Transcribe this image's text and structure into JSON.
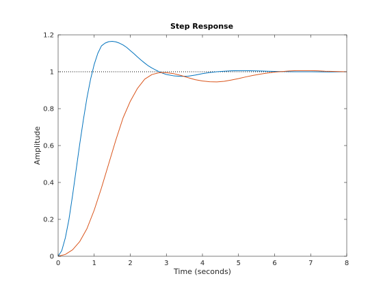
{
  "chart_data": {
    "type": "line",
    "title": "Step Response",
    "xlabel": "Time (seconds)",
    "ylabel": "Amplitude",
    "xlim": [
      0,
      8
    ],
    "ylim": [
      0,
      1.2
    ],
    "xticks": [
      0,
      1,
      2,
      3,
      4,
      5,
      6,
      7,
      8
    ],
    "yticks": [
      0,
      0.2,
      0.4,
      0.6,
      0.8,
      1,
      1.2
    ],
    "grid": false,
    "reference_line": {
      "y": 1,
      "style": "dotted",
      "color": "#000000"
    },
    "series": [
      {
        "color": "#0072BD",
        "x": [
          0,
          0.1,
          0.2,
          0.3,
          0.4,
          0.5,
          0.6,
          0.7,
          0.8,
          0.9,
          1.0,
          1.1,
          1.2,
          1.3,
          1.4,
          1.5,
          1.6,
          1.7,
          1.8,
          1.9,
          2.0,
          2.1,
          2.2,
          2.3,
          2.4,
          2.5,
          2.6,
          2.7,
          2.8,
          2.9,
          3.0,
          3.2,
          3.4,
          3.6,
          3.8,
          4.0,
          4.2,
          4.4,
          4.6,
          4.8,
          5.0,
          5.2,
          5.4,
          5.6,
          5.8,
          6.0,
          6.5,
          7.0,
          7.5,
          8.0
        ],
        "y": [
          0,
          0.03,
          0.1,
          0.2,
          0.33,
          0.47,
          0.61,
          0.74,
          0.86,
          0.96,
          1.04,
          1.1,
          1.14,
          1.155,
          1.163,
          1.165,
          1.162,
          1.155,
          1.145,
          1.132,
          1.115,
          1.098,
          1.08,
          1.063,
          1.047,
          1.032,
          1.02,
          1.01,
          1.0,
          0.992,
          0.985,
          0.978,
          0.975,
          0.976,
          0.982,
          0.99,
          0.996,
          1.0,
          1.003,
          1.005,
          1.006,
          1.006,
          1.005,
          1.004,
          1.003,
          1.002,
          1.0,
          1.0,
          0.999,
          1.0
        ]
      },
      {
        "color": "#D95319",
        "x": [
          0,
          0.2,
          0.4,
          0.6,
          0.8,
          1.0,
          1.2,
          1.4,
          1.6,
          1.8,
          2.0,
          2.2,
          2.4,
          2.6,
          2.8,
          3.0,
          3.2,
          3.4,
          3.6,
          3.8,
          4.0,
          4.2,
          4.4,
          4.6,
          4.8,
          5.0,
          5.2,
          5.4,
          5.6,
          5.8,
          6.0,
          6.2,
          6.4,
          6.6,
          6.8,
          7.0,
          7.2,
          7.4,
          7.6,
          8.0
        ],
        "y": [
          0,
          0.01,
          0.035,
          0.08,
          0.15,
          0.25,
          0.37,
          0.5,
          0.63,
          0.75,
          0.84,
          0.91,
          0.96,
          0.985,
          0.995,
          0.995,
          0.99,
          0.98,
          0.968,
          0.957,
          0.95,
          0.946,
          0.945,
          0.948,
          0.955,
          0.963,
          0.972,
          0.98,
          0.987,
          0.993,
          0.998,
          1.001,
          1.004,
          1.006,
          1.006,
          1.006,
          1.005,
          1.003,
          1.002,
          1.0
        ]
      }
    ]
  }
}
